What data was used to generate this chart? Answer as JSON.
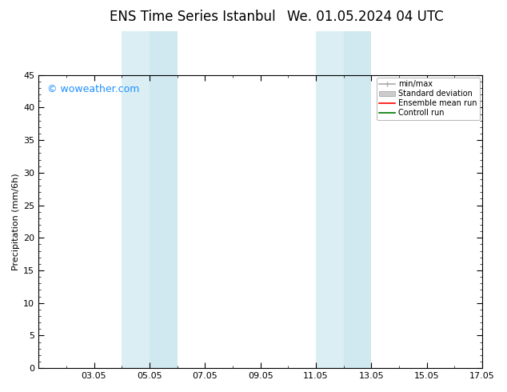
{
  "title": "ENS Time Series Istanbul",
  "title2": "We. 01.05.2024 04 UTC",
  "ylabel": "Precipitation (mm/6h)",
  "ylim": [
    0,
    45
  ],
  "yticks": [
    0,
    5,
    10,
    15,
    20,
    25,
    30,
    35,
    40,
    45
  ],
  "xlim_start": 1,
  "xlim_end": 17,
  "xtick_labels": [
    "03.05",
    "05.05",
    "07.05",
    "09.05",
    "11.05",
    "13.05",
    "15.05",
    "17.05"
  ],
  "xtick_positions": [
    3,
    5,
    7,
    9,
    11,
    13,
    15,
    17
  ],
  "shade_bands": [
    {
      "x_start": 4.0,
      "x_end": 5.0,
      "color": "#daeef3"
    },
    {
      "x_start": 5.0,
      "x_end": 6.0,
      "color": "#d0e8f0"
    },
    {
      "x_start": 11.0,
      "x_end": 12.0,
      "color": "#daeef3"
    },
    {
      "x_start": 12.0,
      "x_end": 13.0,
      "color": "#d0e8f0"
    }
  ],
  "watermark": "© woweather.com",
  "watermark_color": "#1e90ff",
  "watermark_fontsize": 9,
  "legend_items": [
    {
      "label": "min/max",
      "color": "#aaaaaa",
      "type": "minmax"
    },
    {
      "label": "Standard deviation",
      "color": "#cccccc",
      "type": "std"
    },
    {
      "label": "Ensemble mean run",
      "color": "#ff0000",
      "type": "line"
    },
    {
      "label": "Controll run",
      "color": "#007700",
      "type": "line"
    }
  ],
  "background_color": "#ffffff",
  "plot_bg_color": "#ffffff",
  "title_fontsize": 12,
  "axis_label_fontsize": 8,
  "tick_fontsize": 8
}
